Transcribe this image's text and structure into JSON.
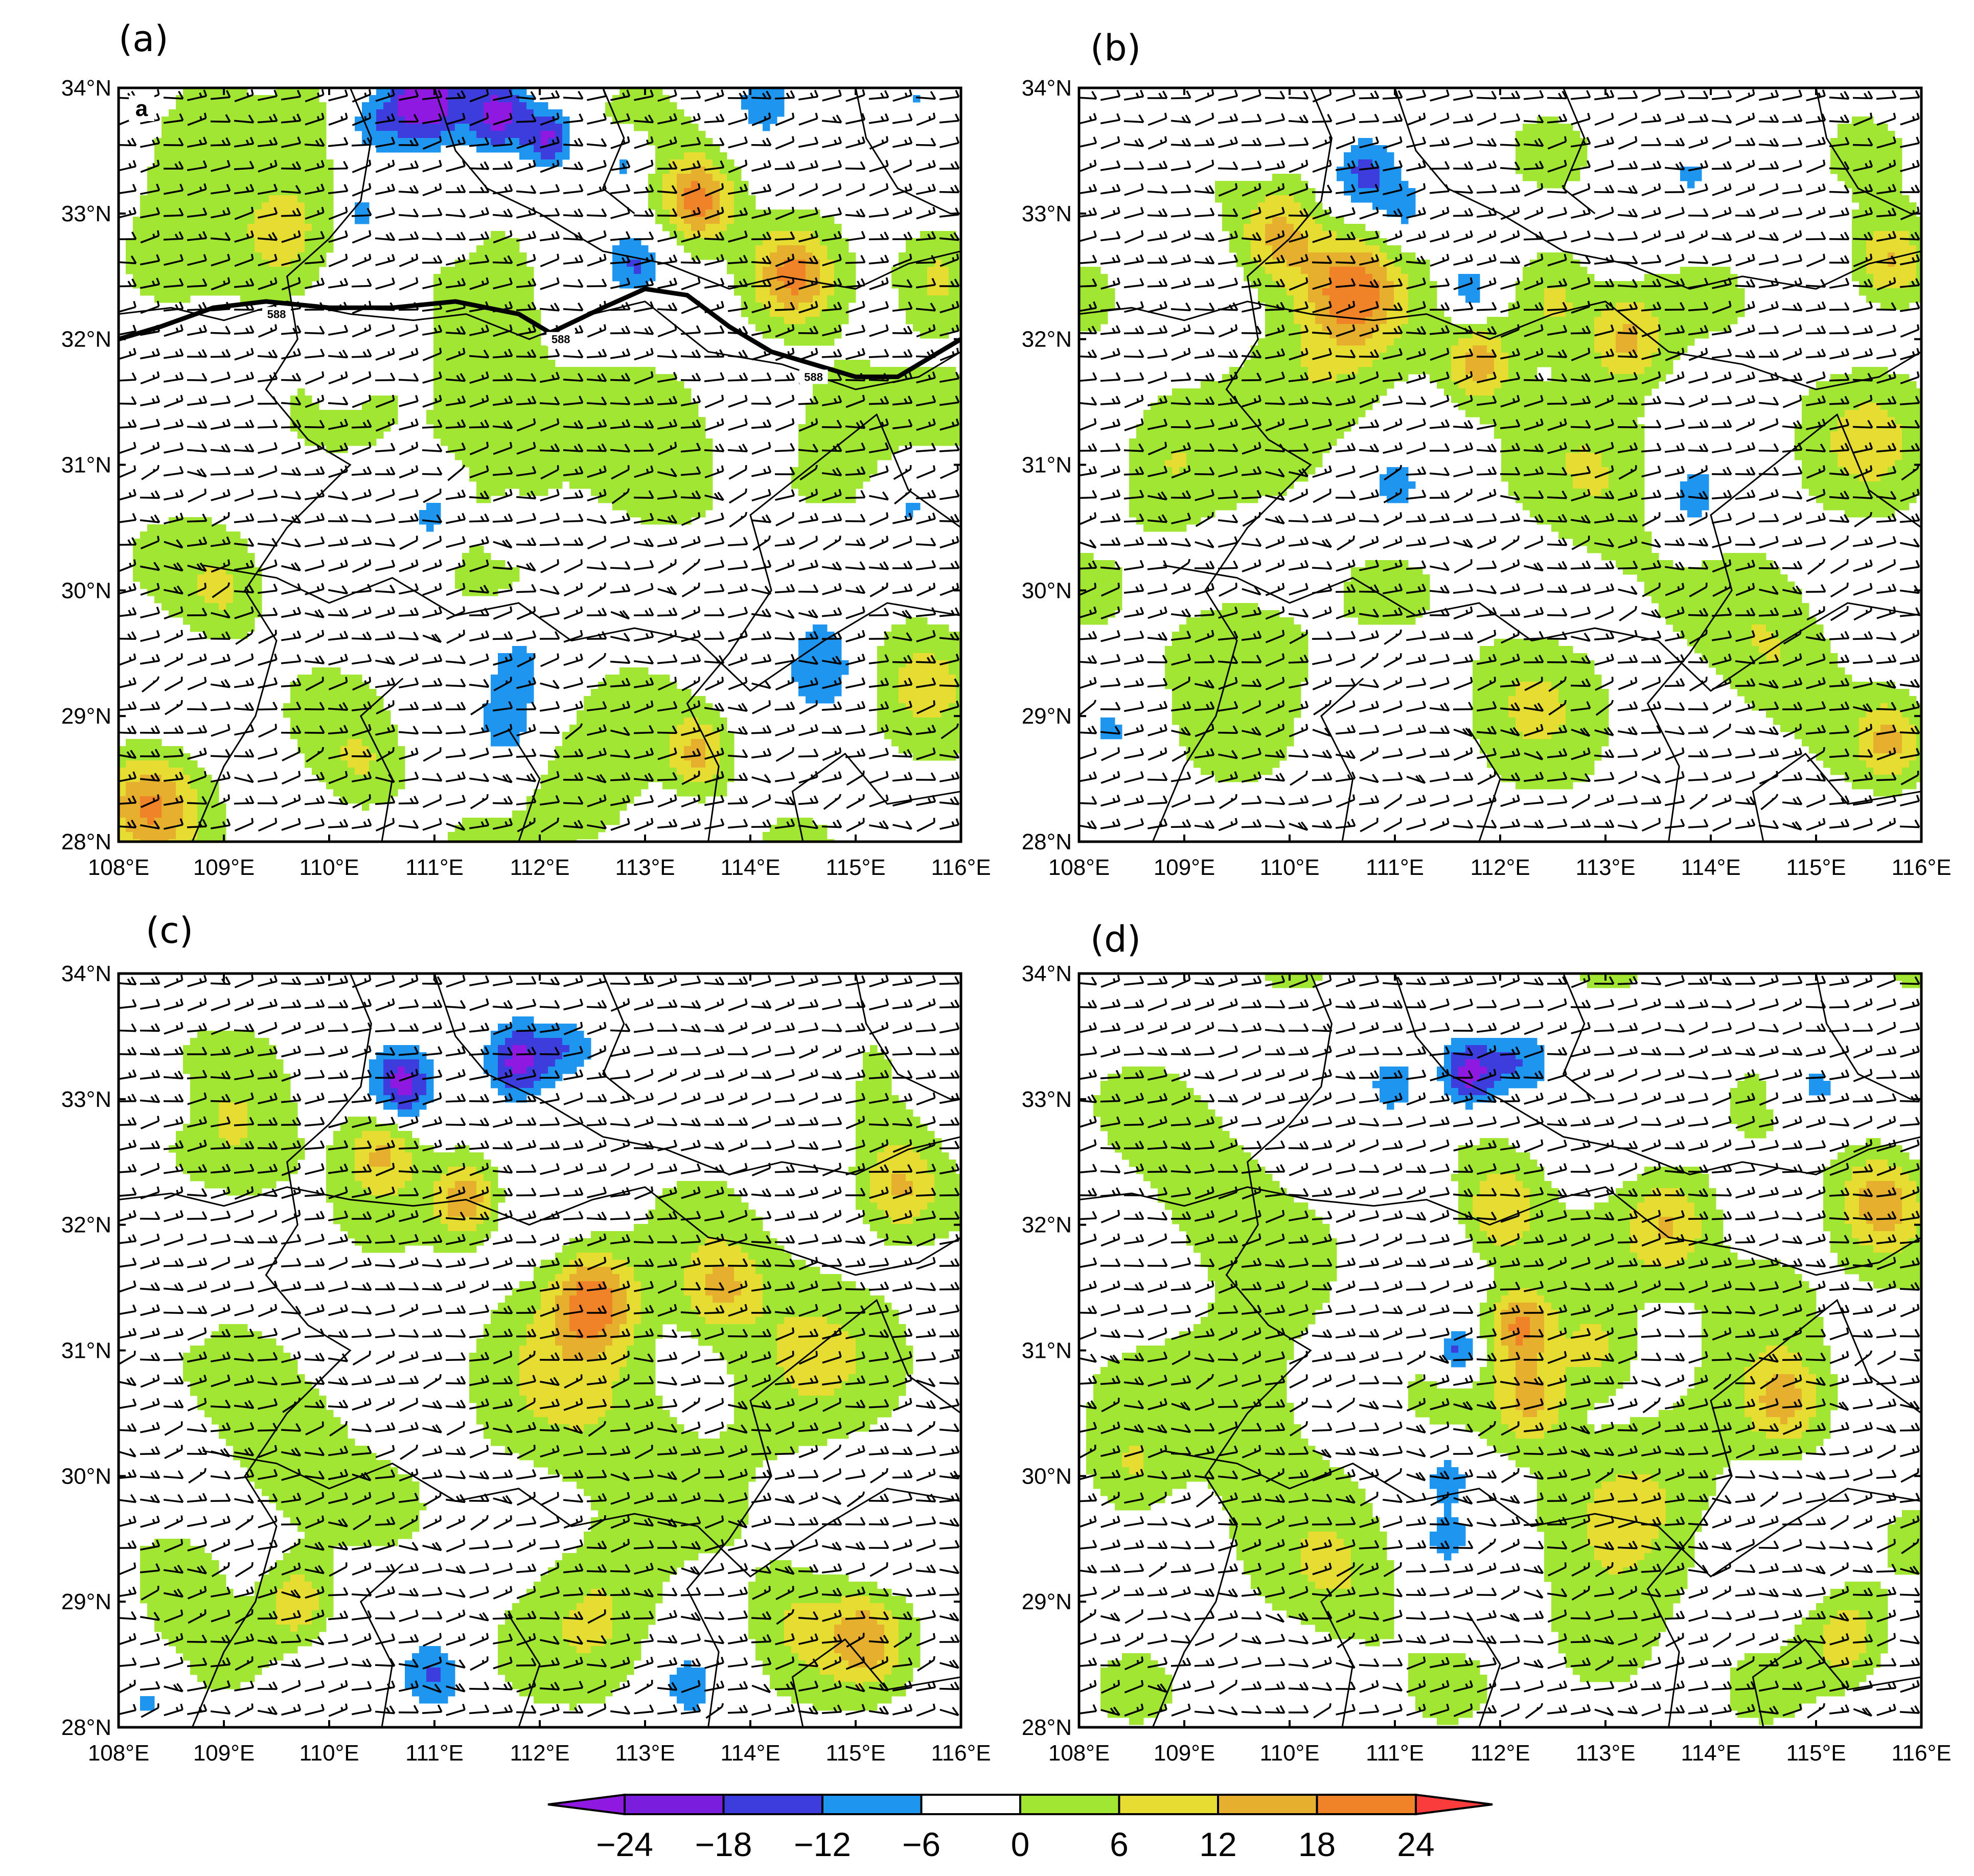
{
  "panels": [
    {
      "label": "(a)",
      "inset_letter": "a",
      "contour_label": "588"
    },
    {
      "label": "(b)"
    },
    {
      "label": "(c)"
    },
    {
      "label": "(d)"
    }
  ],
  "axes": {
    "lat_ticks": [
      "34°N",
      "33°N",
      "32°N",
      "31°N",
      "30°N",
      "29°N",
      "28°N"
    ],
    "lon_ticks": [
      "108°E",
      "109°E",
      "110°E",
      "111°E",
      "112°E",
      "113°E",
      "114°E",
      "115°E",
      "116°E"
    ],
    "lat_range": [
      28,
      34
    ],
    "lon_range": [
      108,
      116
    ]
  },
  "colorbar": {
    "ticks": [
      "−24",
      "−18",
      "−12",
      "−6",
      "0",
      "6",
      "12",
      "18",
      "24"
    ],
    "colors": [
      "#8f19e0",
      "#7a1ddc",
      "#3c3ddc",
      "#1e96f0",
      "#ffffff",
      "#a0e632",
      "#e6dc32",
      "#e6af2d",
      "#f08228",
      "#fa3c3c"
    ]
  },
  "chart_data": {
    "type": "heatmap",
    "description_units": "shaded field with wind barbs",
    "levels": [
      -24,
      -18,
      -12,
      -6,
      0,
      6,
      12,
      18,
      24
    ],
    "xlim": [
      108,
      116
    ],
    "ylim": [
      28,
      34
    ],
    "contour_value": 588
  }
}
